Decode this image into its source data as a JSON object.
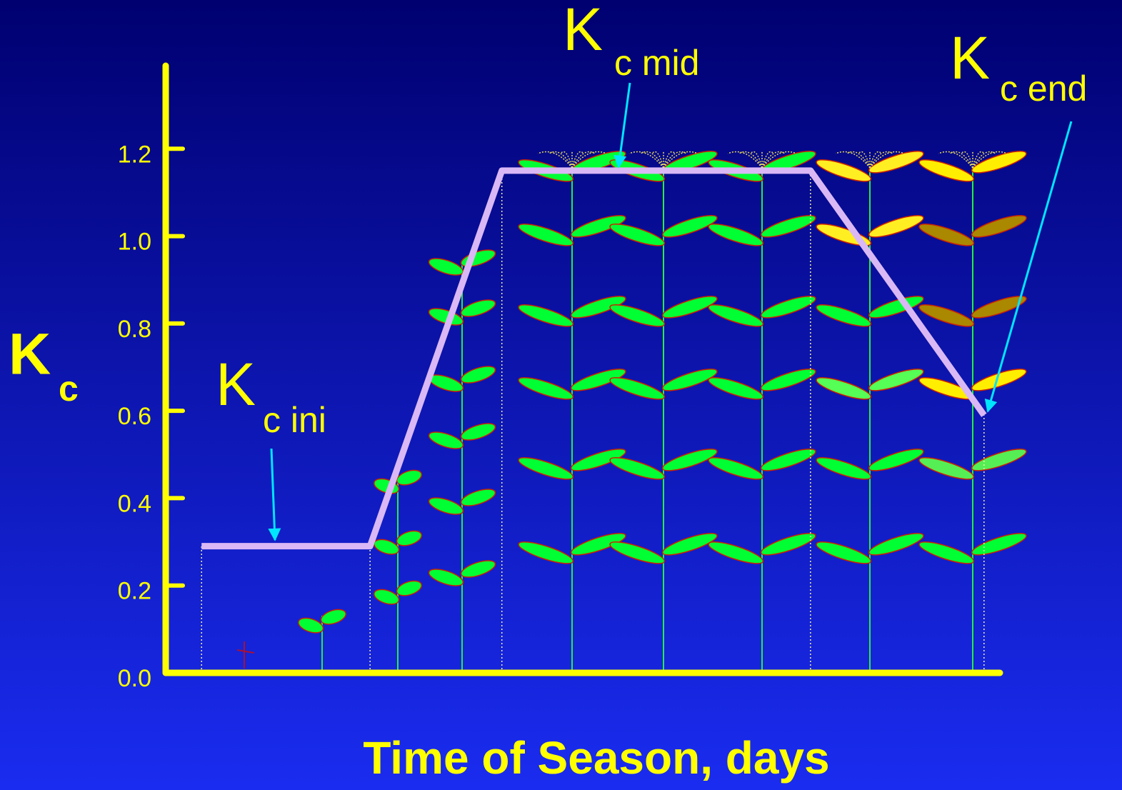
{
  "chart_data": {
    "type": "line",
    "x_label": "Time of Season, days",
    "y_label": {
      "text": "K",
      "sub": "c"
    },
    "x": [
      4.3,
      24.5,
      40.3,
      77.3,
      98.1
    ],
    "series": [
      {
        "color": "#d9b8f5",
        "values": [
          0.29,
          0.29,
          1.15,
          1.15,
          0.59
        ]
      }
    ],
    "xlim": [
      0,
      100
    ],
    "ylim": [
      0,
      1.4
    ],
    "yticks": [
      {
        "value": 0,
        "label": "0.0"
      },
      0.2,
      0.4,
      0.6,
      0.8,
      {
        "value": 1,
        "label": "1.0"
      },
      1.2
    ],
    "axis_color": "#ffff00",
    "annotations": [
      {
        "text": "K",
        "sub": "c ini"
      },
      {
        "text": "K",
        "sub": "c mid"
      },
      {
        "text": "K",
        "sub": "c end"
      }
    ]
  }
}
